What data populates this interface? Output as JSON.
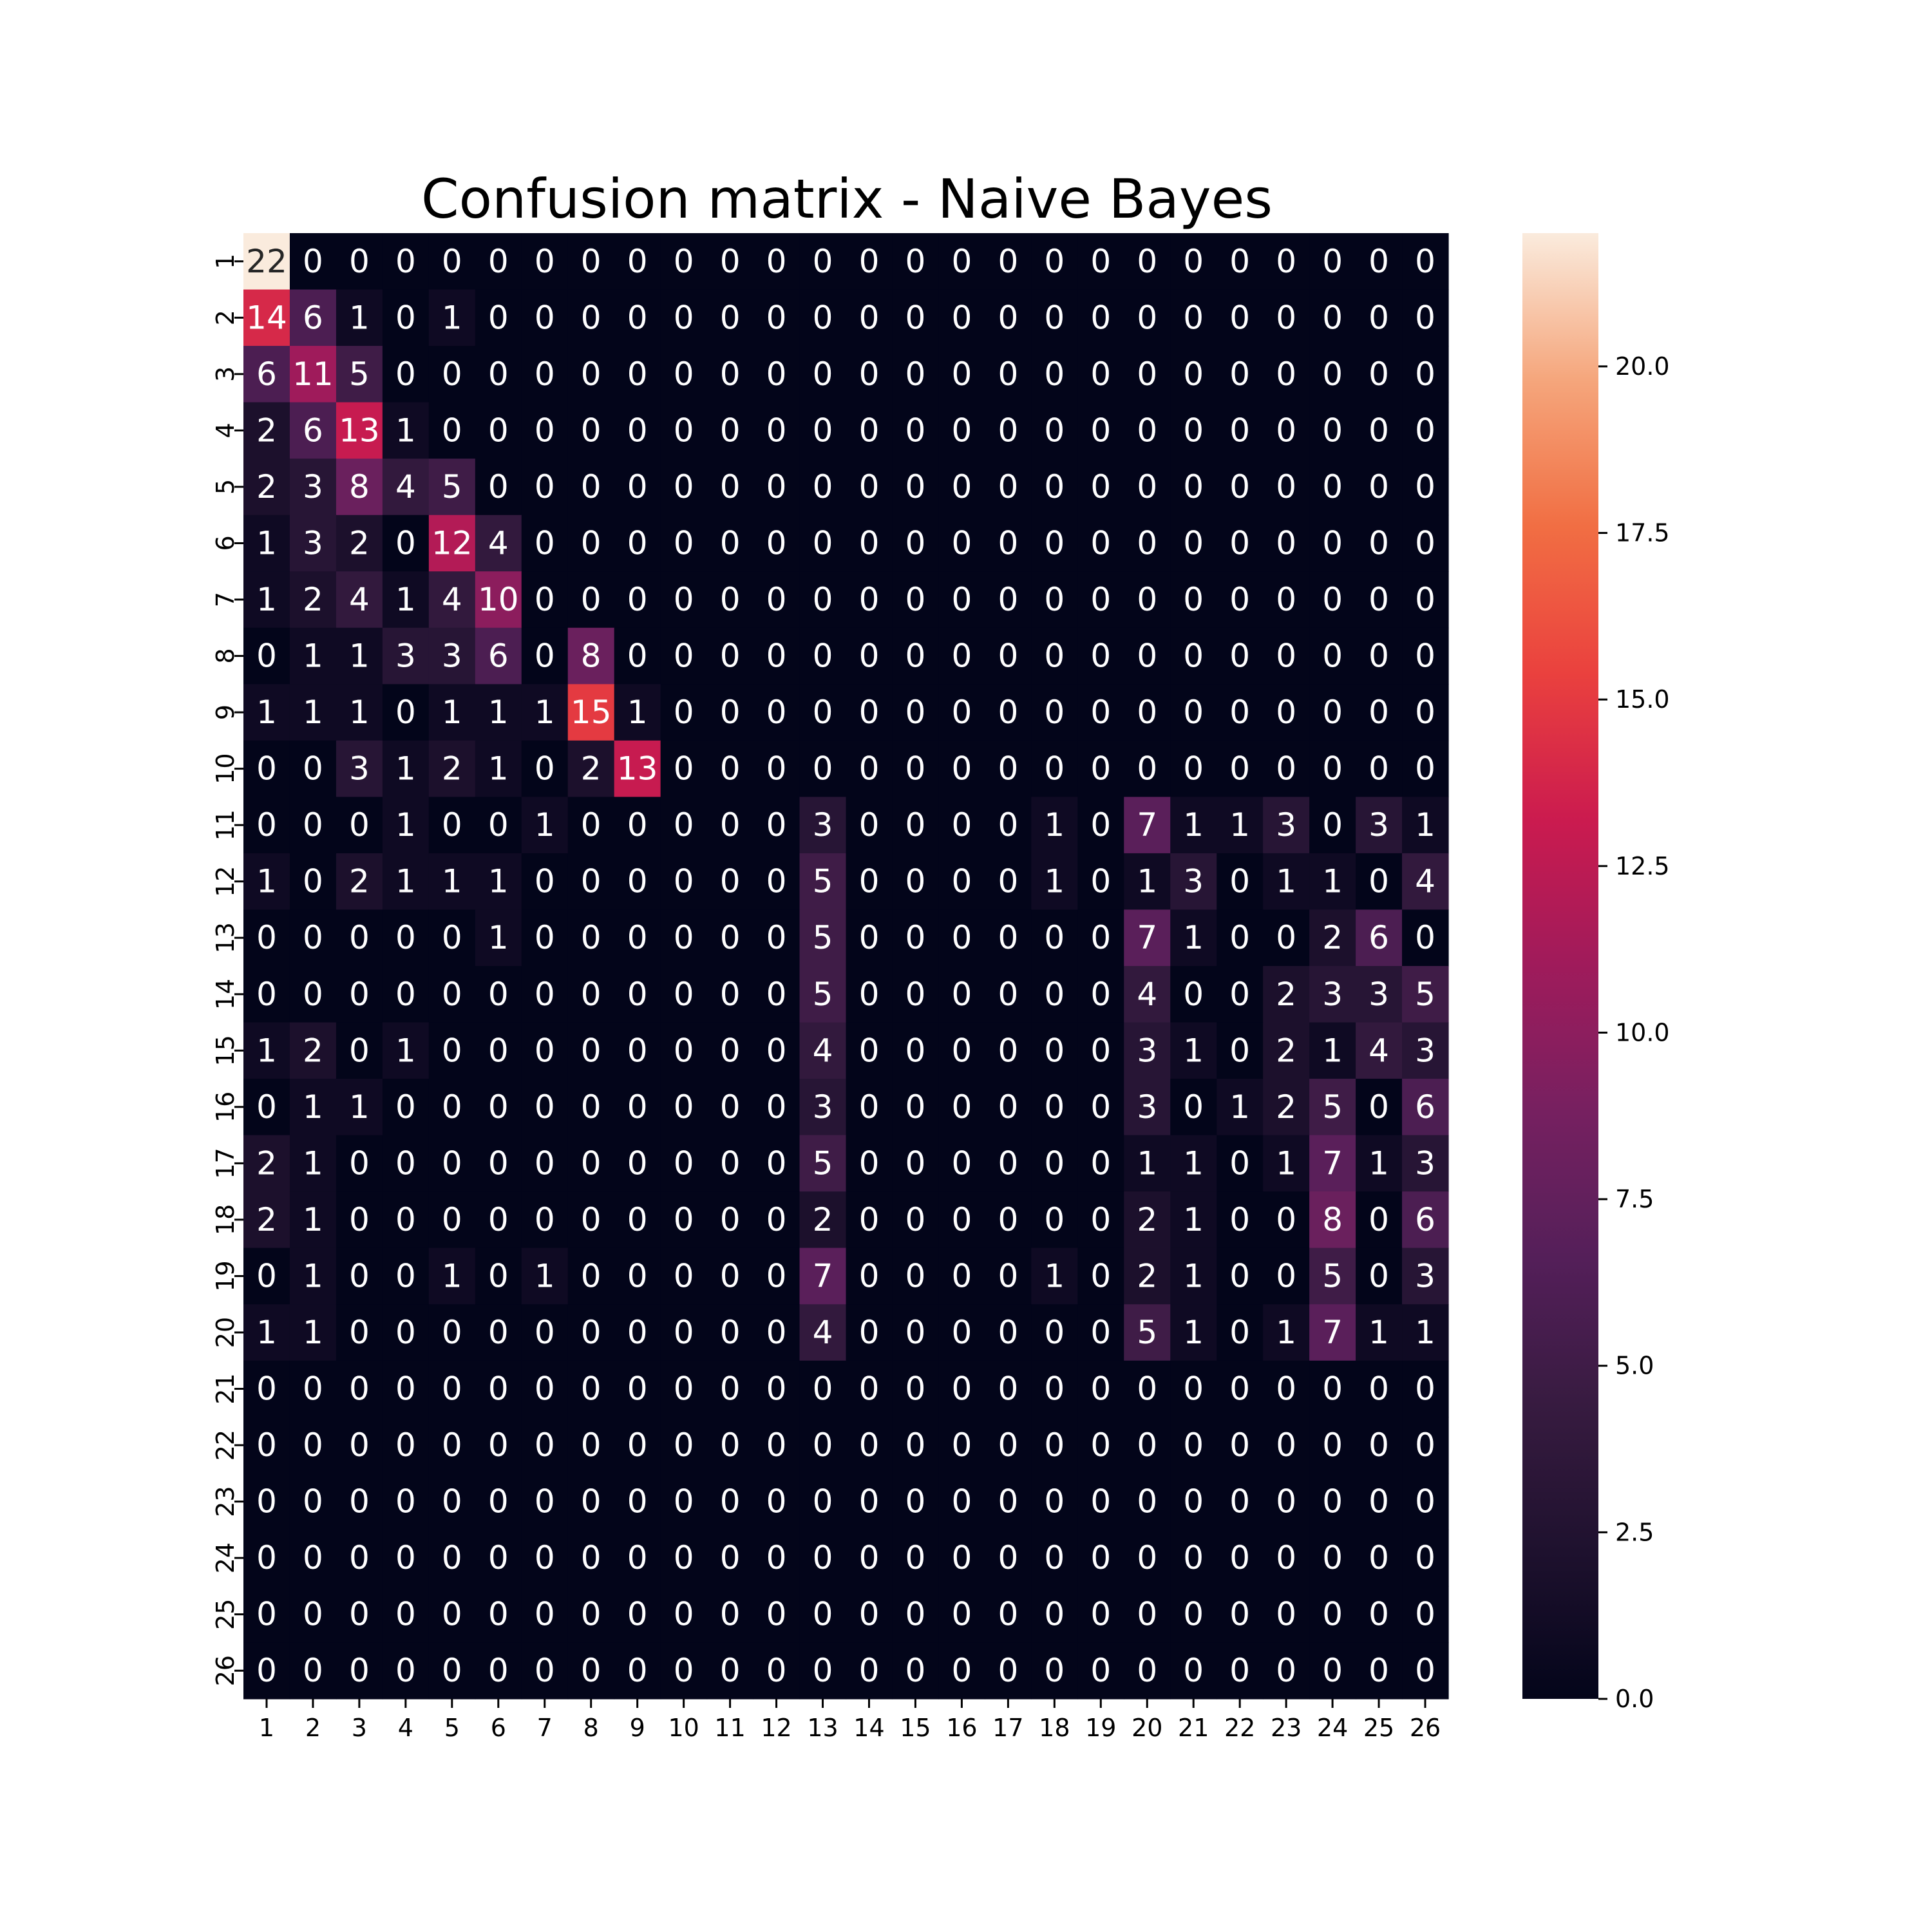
{
  "chart_data": {
    "type": "heatmap",
    "title": "Confusion matrix - Naive Bayes",
    "xlabel": "",
    "ylabel": "",
    "x_labels": [
      "1",
      "2",
      "3",
      "4",
      "5",
      "6",
      "7",
      "8",
      "9",
      "10",
      "11",
      "12",
      "13",
      "14",
      "15",
      "16",
      "17",
      "18",
      "19",
      "20",
      "21",
      "22",
      "23",
      "24",
      "25",
      "26"
    ],
    "y_labels": [
      "1",
      "2",
      "3",
      "4",
      "5",
      "6",
      "7",
      "8",
      "9",
      "10",
      "11",
      "12",
      "13",
      "14",
      "15",
      "16",
      "17",
      "18",
      "19",
      "20",
      "21",
      "22",
      "23",
      "24",
      "25",
      "26"
    ],
    "values": [
      [
        22,
        0,
        0,
        0,
        0,
        0,
        0,
        0,
        0,
        0,
        0,
        0,
        0,
        0,
        0,
        0,
        0,
        0,
        0,
        0,
        0,
        0,
        0,
        0,
        0,
        0
      ],
      [
        14,
        6,
        1,
        0,
        1,
        0,
        0,
        0,
        0,
        0,
        0,
        0,
        0,
        0,
        0,
        0,
        0,
        0,
        0,
        0,
        0,
        0,
        0,
        0,
        0,
        0
      ],
      [
        6,
        11,
        5,
        0,
        0,
        0,
        0,
        0,
        0,
        0,
        0,
        0,
        0,
        0,
        0,
        0,
        0,
        0,
        0,
        0,
        0,
        0,
        0,
        0,
        0,
        0
      ],
      [
        2,
        6,
        13,
        1,
        0,
        0,
        0,
        0,
        0,
        0,
        0,
        0,
        0,
        0,
        0,
        0,
        0,
        0,
        0,
        0,
        0,
        0,
        0,
        0,
        0,
        0
      ],
      [
        2,
        3,
        8,
        4,
        5,
        0,
        0,
        0,
        0,
        0,
        0,
        0,
        0,
        0,
        0,
        0,
        0,
        0,
        0,
        0,
        0,
        0,
        0,
        0,
        0,
        0
      ],
      [
        1,
        3,
        2,
        0,
        12,
        4,
        0,
        0,
        0,
        0,
        0,
        0,
        0,
        0,
        0,
        0,
        0,
        0,
        0,
        0,
        0,
        0,
        0,
        0,
        0,
        0
      ],
      [
        1,
        2,
        4,
        1,
        4,
        10,
        0,
        0,
        0,
        0,
        0,
        0,
        0,
        0,
        0,
        0,
        0,
        0,
        0,
        0,
        0,
        0,
        0,
        0,
        0,
        0
      ],
      [
        0,
        1,
        1,
        3,
        3,
        6,
        0,
        8,
        0,
        0,
        0,
        0,
        0,
        0,
        0,
        0,
        0,
        0,
        0,
        0,
        0,
        0,
        0,
        0,
        0,
        0
      ],
      [
        1,
        1,
        1,
        0,
        1,
        1,
        1,
        15,
        1,
        0,
        0,
        0,
        0,
        0,
        0,
        0,
        0,
        0,
        0,
        0,
        0,
        0,
        0,
        0,
        0,
        0
      ],
      [
        0,
        0,
        3,
        1,
        2,
        1,
        0,
        2,
        13,
        0,
        0,
        0,
        0,
        0,
        0,
        0,
        0,
        0,
        0,
        0,
        0,
        0,
        0,
        0,
        0,
        0
      ],
      [
        0,
        0,
        0,
        1,
        0,
        0,
        1,
        0,
        0,
        0,
        0,
        0,
        3,
        0,
        0,
        0,
        0,
        1,
        0,
        7,
        1,
        1,
        3,
        0,
        3,
        1
      ],
      [
        1,
        0,
        2,
        1,
        1,
        1,
        0,
        0,
        0,
        0,
        0,
        0,
        5,
        0,
        0,
        0,
        0,
        1,
        0,
        1,
        3,
        0,
        1,
        1,
        0,
        4
      ],
      [
        0,
        0,
        0,
        0,
        0,
        1,
        0,
        0,
        0,
        0,
        0,
        0,
        5,
        0,
        0,
        0,
        0,
        0,
        0,
        7,
        1,
        0,
        0,
        2,
        6,
        0
      ],
      [
        0,
        0,
        0,
        0,
        0,
        0,
        0,
        0,
        0,
        0,
        0,
        0,
        5,
        0,
        0,
        0,
        0,
        0,
        0,
        4,
        0,
        0,
        2,
        3,
        3,
        5
      ],
      [
        1,
        2,
        0,
        1,
        0,
        0,
        0,
        0,
        0,
        0,
        0,
        0,
        4,
        0,
        0,
        0,
        0,
        0,
        0,
        3,
        1,
        0,
        2,
        1,
        4,
        3
      ],
      [
        0,
        1,
        1,
        0,
        0,
        0,
        0,
        0,
        0,
        0,
        0,
        0,
        3,
        0,
        0,
        0,
        0,
        0,
        0,
        3,
        0,
        1,
        2,
        5,
        0,
        6
      ],
      [
        2,
        1,
        0,
        0,
        0,
        0,
        0,
        0,
        0,
        0,
        0,
        0,
        5,
        0,
        0,
        0,
        0,
        0,
        0,
        1,
        1,
        0,
        1,
        7,
        1,
        3
      ],
      [
        2,
        1,
        0,
        0,
        0,
        0,
        0,
        0,
        0,
        0,
        0,
        0,
        2,
        0,
        0,
        0,
        0,
        0,
        0,
        2,
        1,
        0,
        0,
        8,
        0,
        6
      ],
      [
        0,
        1,
        0,
        0,
        1,
        0,
        1,
        0,
        0,
        0,
        0,
        0,
        7,
        0,
        0,
        0,
        0,
        1,
        0,
        2,
        1,
        0,
        0,
        5,
        0,
        3
      ],
      [
        1,
        1,
        0,
        0,
        0,
        0,
        0,
        0,
        0,
        0,
        0,
        0,
        4,
        0,
        0,
        0,
        0,
        0,
        0,
        5,
        1,
        0,
        1,
        7,
        1,
        1
      ],
      [
        0,
        0,
        0,
        0,
        0,
        0,
        0,
        0,
        0,
        0,
        0,
        0,
        0,
        0,
        0,
        0,
        0,
        0,
        0,
        0,
        0,
        0,
        0,
        0,
        0,
        0
      ],
      [
        0,
        0,
        0,
        0,
        0,
        0,
        0,
        0,
        0,
        0,
        0,
        0,
        0,
        0,
        0,
        0,
        0,
        0,
        0,
        0,
        0,
        0,
        0,
        0,
        0,
        0
      ],
      [
        0,
        0,
        0,
        0,
        0,
        0,
        0,
        0,
        0,
        0,
        0,
        0,
        0,
        0,
        0,
        0,
        0,
        0,
        0,
        0,
        0,
        0,
        0,
        0,
        0,
        0
      ],
      [
        0,
        0,
        0,
        0,
        0,
        0,
        0,
        0,
        0,
        0,
        0,
        0,
        0,
        0,
        0,
        0,
        0,
        0,
        0,
        0,
        0,
        0,
        0,
        0,
        0,
        0
      ],
      [
        0,
        0,
        0,
        0,
        0,
        0,
        0,
        0,
        0,
        0,
        0,
        0,
        0,
        0,
        0,
        0,
        0,
        0,
        0,
        0,
        0,
        0,
        0,
        0,
        0,
        0
      ],
      [
        0,
        0,
        0,
        0,
        0,
        0,
        0,
        0,
        0,
        0,
        0,
        0,
        0,
        0,
        0,
        0,
        0,
        0,
        0,
        0,
        0,
        0,
        0,
        0,
        0,
        0
      ]
    ],
    "vmin": 0,
    "vmax": 22,
    "colormap": "rocket",
    "colorbar": {
      "ticks": [
        0.0,
        2.5,
        5.0,
        7.5,
        10.0,
        12.5,
        15.0,
        17.5,
        20.0
      ],
      "tick_labels": [
        "0.0",
        "2.5",
        "5.0",
        "7.5",
        "10.0",
        "12.5",
        "15.0",
        "17.5",
        "20.0"
      ],
      "position": "right"
    },
    "annotations": true
  }
}
